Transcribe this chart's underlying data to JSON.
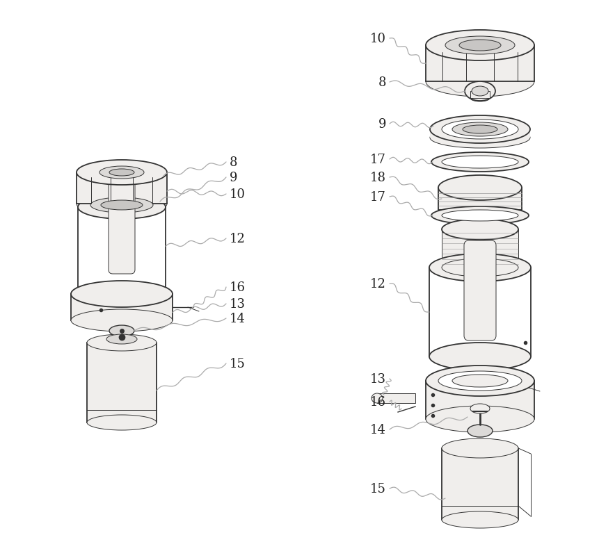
{
  "bg_color": "#ffffff",
  "line_color": "#333333",
  "label_color": "#222222",
  "fig_width": 8.84,
  "fig_height": 8.04,
  "dpi": 100,
  "font_size": 13,
  "lw_main": 1.3,
  "lw_thin": 0.7,
  "lw_med": 1.0,
  "fc_white": "#ffffff",
  "fc_light": "#f0eeec",
  "fc_mid": "#dcdad8",
  "fc_dark": "#c8c6c4"
}
